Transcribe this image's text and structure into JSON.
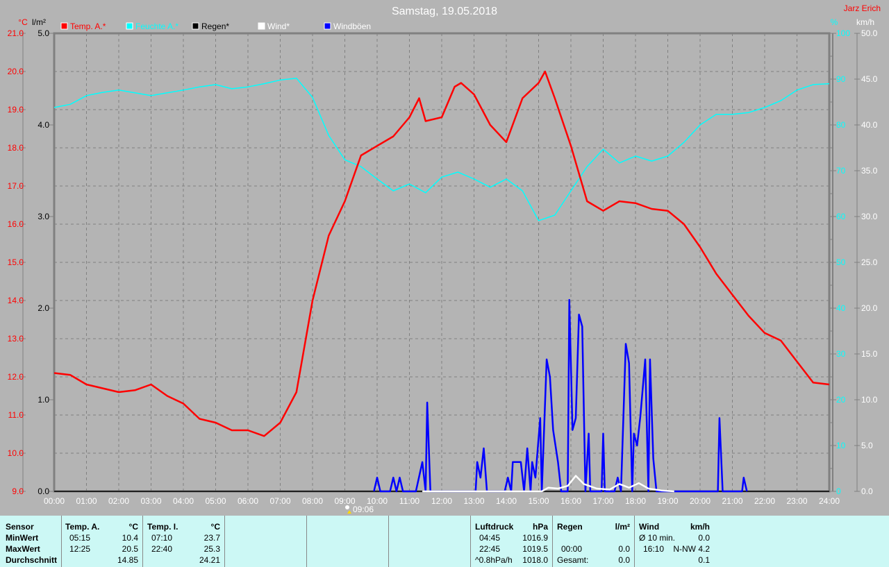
{
  "header": {
    "title": "Samstag, 19.05.2018",
    "author": "Jarz Erich",
    "sunrise_time": "09:06"
  },
  "chart_data": {
    "type": "line",
    "title": "Samstag, 19.05.2018",
    "x_unit": "time (h)",
    "x_ticks": [
      "00:00",
      "01:00",
      "02:00",
      "03:00",
      "04:00",
      "05:00",
      "06:00",
      "07:00",
      "08:00",
      "09:00",
      "10:00",
      "11:00",
      "12:00",
      "13:00",
      "14:00",
      "15:00",
      "16:00",
      "17:00",
      "18:00",
      "19:00",
      "20:00",
      "21:00",
      "22:00",
      "23:00",
      "24:00"
    ],
    "xlim": [
      0,
      24
    ],
    "grid": true,
    "legend_placement": "top-left",
    "axes": {
      "temp": {
        "unit": "°C",
        "range": [
          9,
          21
        ],
        "ticks": [
          "21.0",
          "20.0",
          "19.0",
          "18.0",
          "17.0",
          "16.0",
          "15.0",
          "14.0",
          "13.0",
          "12.0",
          "11.0",
          "10.0",
          "9.0"
        ],
        "color": "#ff0000"
      },
      "rain": {
        "unit": "l/m²",
        "range": [
          0,
          5
        ],
        "ticks": [
          "5.0",
          "4.0",
          "3.0",
          "2.0",
          "1.0",
          "0.0"
        ],
        "color": "#000000"
      },
      "humidity": {
        "unit": "%",
        "range": [
          0,
          100
        ],
        "ticks": [
          "100",
          "90",
          "80",
          "70",
          "60",
          "50",
          "40",
          "30",
          "20",
          "10",
          "0"
        ],
        "color": "#00ffff"
      },
      "wind": {
        "unit": "km/h",
        "range": [
          0,
          50
        ],
        "ticks": [
          "50.0",
          "45.0",
          "40.0",
          "35.0",
          "30.0",
          "25.0",
          "20.0",
          "15.0",
          "10.0",
          "5.0",
          "0.0"
        ],
        "color": "#ffffff"
      }
    },
    "series": [
      {
        "name": "Temp. A.*",
        "axis": "temp",
        "color": "#ff0000",
        "points": [
          [
            0,
            12.1
          ],
          [
            0.5,
            12.05
          ],
          [
            1,
            11.8
          ],
          [
            1.5,
            11.7
          ],
          [
            2,
            11.6
          ],
          [
            2.5,
            11.65
          ],
          [
            3,
            11.8
          ],
          [
            3.5,
            11.5
          ],
          [
            4,
            11.3
          ],
          [
            4.5,
            10.9
          ],
          [
            5,
            10.8
          ],
          [
            5.5,
            10.6
          ],
          [
            6,
            10.6
          ],
          [
            6.5,
            10.45
          ],
          [
            7,
            10.8
          ],
          [
            7.5,
            11.6
          ],
          [
            8,
            14.0
          ],
          [
            8.5,
            15.7
          ],
          [
            9,
            16.6
          ],
          [
            9.5,
            17.8
          ],
          [
            10,
            18.05
          ],
          [
            10.5,
            18.3
          ],
          [
            11,
            18.8
          ],
          [
            11.3,
            19.3
          ],
          [
            11.5,
            18.7
          ],
          [
            12,
            18.8
          ],
          [
            12.4,
            19.6
          ],
          [
            12.6,
            19.7
          ],
          [
            13,
            19.4
          ],
          [
            13.5,
            18.6
          ],
          [
            14,
            18.15
          ],
          [
            14.5,
            19.3
          ],
          [
            15,
            19.7
          ],
          [
            15.2,
            20.0
          ],
          [
            15.5,
            19.3
          ],
          [
            16,
            18.05
          ],
          [
            16.5,
            16.6
          ],
          [
            17,
            16.35
          ],
          [
            17.5,
            16.6
          ],
          [
            18,
            16.55
          ],
          [
            18.5,
            16.4
          ],
          [
            19,
            16.35
          ],
          [
            19.5,
            16.0
          ],
          [
            20,
            15.4
          ],
          [
            20.5,
            14.7
          ],
          [
            21,
            14.15
          ],
          [
            21.5,
            13.6
          ],
          [
            22,
            13.15
          ],
          [
            22.5,
            12.95
          ],
          [
            23,
            12.4
          ],
          [
            23.5,
            11.85
          ],
          [
            24,
            11.8
          ]
        ]
      },
      {
        "name": "Feuchte A.*",
        "axis": "humidity",
        "color": "#00ffff",
        "points": [
          [
            0,
            83.8
          ],
          [
            0.5,
            84.5
          ],
          [
            1,
            86.4
          ],
          [
            1.5,
            87.1
          ],
          [
            2,
            87.6
          ],
          [
            2.5,
            87
          ],
          [
            3,
            86.4
          ],
          [
            3.5,
            87
          ],
          [
            4,
            87.6
          ],
          [
            4.5,
            88.3
          ],
          [
            5,
            88.8
          ],
          [
            5.5,
            87.9
          ],
          [
            6,
            88.3
          ],
          [
            6.5,
            89
          ],
          [
            7,
            89.8
          ],
          [
            7.5,
            90.2
          ],
          [
            8,
            86
          ],
          [
            8.5,
            77.7
          ],
          [
            9,
            72.4
          ],
          [
            9.5,
            70.9
          ],
          [
            10,
            68.2
          ],
          [
            10.5,
            65.6
          ],
          [
            11,
            67.1
          ],
          [
            11.5,
            65.2
          ],
          [
            12,
            68.6
          ],
          [
            12.5,
            69.7
          ],
          [
            13,
            68.2
          ],
          [
            13.5,
            66.4
          ],
          [
            14,
            68.2
          ],
          [
            14.5,
            65.6
          ],
          [
            15,
            59.1
          ],
          [
            15.5,
            60.3
          ],
          [
            16,
            65.6
          ],
          [
            16.5,
            70.9
          ],
          [
            17,
            74.7
          ],
          [
            17.5,
            71.7
          ],
          [
            18,
            73.2
          ],
          [
            18.5,
            72.1
          ],
          [
            19,
            73.2
          ],
          [
            19.5,
            76.2
          ],
          [
            20,
            80
          ],
          [
            20.5,
            82.3
          ],
          [
            21,
            82.3
          ],
          [
            21.5,
            82.7
          ],
          [
            22,
            83.8
          ],
          [
            22.5,
            85.3
          ],
          [
            23,
            87.6
          ],
          [
            23.5,
            88.8
          ],
          [
            24,
            89
          ]
        ]
      },
      {
        "name": "Regen*",
        "axis": "rain",
        "color": "#000000",
        "points": [
          [
            0,
            0
          ],
          [
            24,
            0
          ]
        ]
      },
      {
        "name": "Wind*",
        "axis": "wind",
        "color": "#ffffff",
        "points": [
          [
            11.4,
            0
          ],
          [
            11.8,
            0
          ],
          [
            15.1,
            0
          ],
          [
            15.3,
            0.4
          ],
          [
            15.6,
            0.3
          ],
          [
            15.9,
            0.6
          ],
          [
            16.15,
            1.7
          ],
          [
            16.4,
            0.8
          ],
          [
            16.8,
            0.3
          ],
          [
            17.2,
            0.2
          ],
          [
            17.5,
            0.8
          ],
          [
            17.8,
            0.4
          ],
          [
            18.1,
            0.9
          ],
          [
            18.4,
            0.3
          ],
          [
            18.8,
            0.1
          ],
          [
            19.2,
            0
          ]
        ]
      },
      {
        "name": "Windböen",
        "axis": "wind",
        "color": "#0000ff",
        "points": [
          [
            9.9,
            0
          ],
          [
            10.0,
            1.5
          ],
          [
            10.1,
            0
          ],
          [
            10.4,
            0
          ],
          [
            10.5,
            1.5
          ],
          [
            10.6,
            0
          ],
          [
            10.7,
            1.5
          ],
          [
            10.8,
            0
          ],
          [
            11.2,
            0
          ],
          [
            11.4,
            3.2
          ],
          [
            11.5,
            0
          ],
          [
            11.55,
            9.7
          ],
          [
            11.65,
            0
          ],
          [
            13.05,
            0
          ],
          [
            13.1,
            3.2
          ],
          [
            13.2,
            1.5
          ],
          [
            13.3,
            4.7
          ],
          [
            13.4,
            0
          ],
          [
            13.95,
            0
          ],
          [
            14.05,
            1.5
          ],
          [
            14.15,
            0
          ],
          [
            14.2,
            3.2
          ],
          [
            14.45,
            3.2
          ],
          [
            14.55,
            0
          ],
          [
            14.65,
            4.7
          ],
          [
            14.75,
            0
          ],
          [
            14.8,
            3.2
          ],
          [
            14.9,
            1.5
          ],
          [
            15.05,
            8.0
          ],
          [
            15.1,
            0
          ],
          [
            15.25,
            14.4
          ],
          [
            15.35,
            12.5
          ],
          [
            15.45,
            6.7
          ],
          [
            15.6,
            3.2
          ],
          [
            15.7,
            0
          ],
          [
            15.9,
            0
          ],
          [
            15.95,
            20.9
          ],
          [
            16.05,
            6.7
          ],
          [
            16.15,
            8.0
          ],
          [
            16.25,
            19.3
          ],
          [
            16.35,
            18.0
          ],
          [
            16.45,
            0
          ],
          [
            16.55,
            6.3
          ],
          [
            16.6,
            0
          ],
          [
            16.95,
            0
          ],
          [
            17.0,
            6.3
          ],
          [
            17.05,
            0
          ],
          [
            17.35,
            0
          ],
          [
            17.45,
            1.5
          ],
          [
            17.55,
            0
          ],
          [
            17.7,
            16.1
          ],
          [
            17.8,
            14.0
          ],
          [
            17.9,
            0
          ],
          [
            17.95,
            6.3
          ],
          [
            18.05,
            5.0
          ],
          [
            18.15,
            8.2
          ],
          [
            18.3,
            14.4
          ],
          [
            18.4,
            0
          ],
          [
            18.45,
            14.4
          ],
          [
            18.55,
            3.6
          ],
          [
            18.65,
            0
          ],
          [
            20.55,
            0
          ],
          [
            20.6,
            8.0
          ],
          [
            20.7,
            0
          ],
          [
            21.3,
            0
          ],
          [
            21.35,
            1.5
          ],
          [
            21.45,
            0
          ]
        ]
      }
    ]
  },
  "table": {
    "sensor": {
      "header": "Sensor",
      "rows": [
        "MinWert",
        "MaxWert",
        "Durchschnitt"
      ]
    },
    "temp_a": {
      "header": "Temp. A.",
      "unit": "°C",
      "min_time": "05:15",
      "min": "10.4",
      "max_time": "12:25",
      "max": "20.5",
      "avg": "14.85"
    },
    "temp_i": {
      "header": "Temp. I.",
      "unit": "°C",
      "min_time": "07:10",
      "min": "23.7",
      "max_time": "22:40",
      "max": "25.3",
      "avg": "24.21"
    },
    "pressure": {
      "header": "Luftdruck",
      "unit": "hPa",
      "min_time": "04:45",
      "min": "1016.9",
      "max_time": "22:45",
      "max": "1019.5",
      "trend": "^0.8hPa/h",
      "avg": "1018.0"
    },
    "rain": {
      "header": "Regen",
      "unit": "l/m²",
      "max_time": "00:00",
      "max": "0.0",
      "total_label": "Gesamt:",
      "total": "0.0"
    },
    "wind": {
      "header": "Wind",
      "unit": "km/h",
      "avg_label": "Ø 10 min.",
      "avg": "0.0",
      "max_time": "16:10",
      "max": "N-NW 4.2",
      "mean": "0.1"
    }
  }
}
